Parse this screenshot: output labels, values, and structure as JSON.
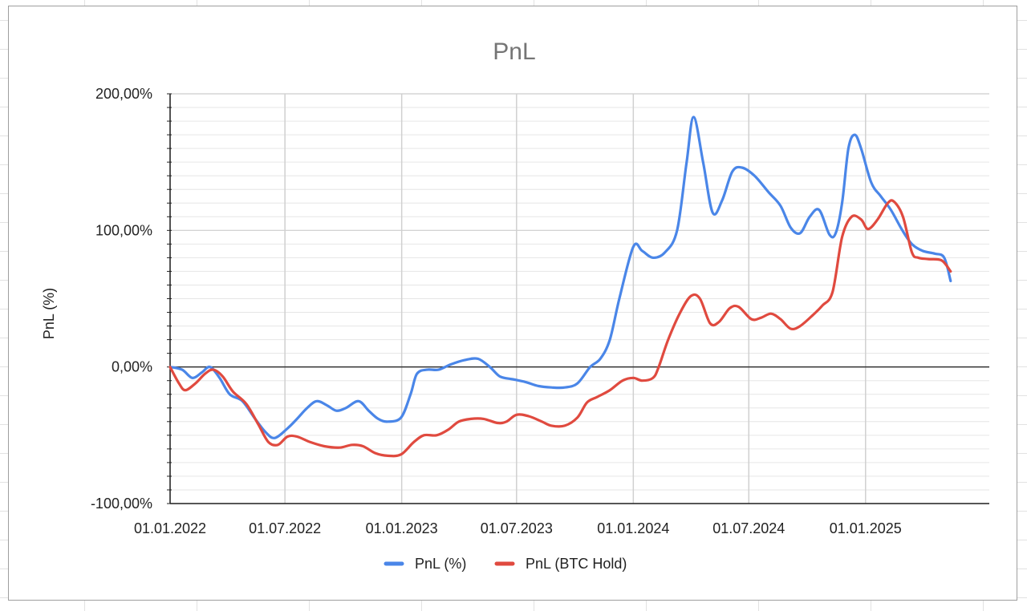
{
  "colors": {
    "series1": "#4a86e8",
    "series2": "#e04a3f",
    "title": "#757575",
    "axis_text": "#222222",
    "grid": "#d9d9d9",
    "zero_line": "#333333"
  },
  "chart_data": {
    "type": "line",
    "title": "PnL",
    "xlabel": "",
    "ylabel": "PnL (%)",
    "ylim": [
      -100,
      200
    ],
    "xlim": [
      "2022-01-01",
      "2025-07-15"
    ],
    "grid": true,
    "legend_position": "bottom",
    "x_ticks": [
      {
        "date": "2022-01-01",
        "label": "01.01.2022"
      },
      {
        "date": "2022-07-01",
        "label": "01.07.2022"
      },
      {
        "date": "2023-01-01",
        "label": "01.01.2023"
      },
      {
        "date": "2023-07-01",
        "label": "01.07.2023"
      },
      {
        "date": "2024-01-01",
        "label": "01.01.2024"
      },
      {
        "date": "2024-07-01",
        "label": "01.07.2024"
      },
      {
        "date": "2025-01-01",
        "label": "01.01.2025"
      }
    ],
    "y_ticks": [
      {
        "value": 200,
        "label": "200,00%"
      },
      {
        "value": 100,
        "label": "100,00%"
      },
      {
        "value": 0,
        "label": "0,00%"
      },
      {
        "value": -100,
        "label": "-100,00%"
      }
    ],
    "series": [
      {
        "name": "PnL (%)",
        "color": "#4a86e8",
        "points": [
          [
            "2022-01-01",
            0
          ],
          [
            "2022-01-20",
            -2
          ],
          [
            "2022-02-05",
            -8
          ],
          [
            "2022-02-20",
            -4
          ],
          [
            "2022-03-05",
            0
          ],
          [
            "2022-03-20",
            -8
          ],
          [
            "2022-04-05",
            -20
          ],
          [
            "2022-04-25",
            -25
          ],
          [
            "2022-05-15",
            -38
          ],
          [
            "2022-06-01",
            -48
          ],
          [
            "2022-06-15",
            -52
          ],
          [
            "2022-07-05",
            -45
          ],
          [
            "2022-07-20",
            -38
          ],
          [
            "2022-08-05",
            -30
          ],
          [
            "2022-08-20",
            -25
          ],
          [
            "2022-09-05",
            -28
          ],
          [
            "2022-09-20",
            -32
          ],
          [
            "2022-10-05",
            -30
          ],
          [
            "2022-10-25",
            -25
          ],
          [
            "2022-11-10",
            -32
          ],
          [
            "2022-11-25",
            -38
          ],
          [
            "2022-12-10",
            -40
          ],
          [
            "2022-12-31",
            -37
          ],
          [
            "2023-01-15",
            -20
          ],
          [
            "2023-01-25",
            -5
          ],
          [
            "2023-02-10",
            -2
          ],
          [
            "2023-02-28",
            -2
          ],
          [
            "2023-03-20",
            2
          ],
          [
            "2023-04-10",
            5
          ],
          [
            "2023-05-01",
            6
          ],
          [
            "2023-05-20",
            0
          ],
          [
            "2023-06-05",
            -7
          ],
          [
            "2023-06-25",
            -9
          ],
          [
            "2023-07-15",
            -11
          ],
          [
            "2023-08-05",
            -14
          ],
          [
            "2023-08-25",
            -15
          ],
          [
            "2023-09-15",
            -15
          ],
          [
            "2023-10-05",
            -12
          ],
          [
            "2023-10-25",
            0
          ],
          [
            "2023-11-10",
            6
          ],
          [
            "2023-11-25",
            20
          ],
          [
            "2023-12-10",
            50
          ],
          [
            "2024-01-01",
            88
          ],
          [
            "2024-01-15",
            85
          ],
          [
            "2024-02-01",
            80
          ],
          [
            "2024-02-20",
            84
          ],
          [
            "2024-03-10",
            100
          ],
          [
            "2024-03-25",
            150
          ],
          [
            "2024-04-05",
            183
          ],
          [
            "2024-04-20",
            150
          ],
          [
            "2024-05-05",
            113
          ],
          [
            "2024-05-20",
            122
          ],
          [
            "2024-06-05",
            143
          ],
          [
            "2024-06-20",
            146
          ],
          [
            "2024-07-10",
            140
          ],
          [
            "2024-08-01",
            128
          ],
          [
            "2024-08-20",
            118
          ],
          [
            "2024-09-05",
            102
          ],
          [
            "2024-09-20",
            98
          ],
          [
            "2024-10-05",
            110
          ],
          [
            "2024-10-20",
            115
          ],
          [
            "2024-11-05",
            97
          ],
          [
            "2024-11-15",
            98
          ],
          [
            "2024-11-25",
            120
          ],
          [
            "2024-12-05",
            160
          ],
          [
            "2024-12-15",
            170
          ],
          [
            "2024-12-25",
            160
          ],
          [
            "2025-01-10",
            135
          ],
          [
            "2025-01-25",
            125
          ],
          [
            "2025-02-10",
            115
          ],
          [
            "2025-02-28",
            100
          ],
          [
            "2025-03-15",
            90
          ],
          [
            "2025-04-01",
            85
          ],
          [
            "2025-04-20",
            83
          ],
          [
            "2025-05-05",
            80
          ],
          [
            "2025-05-15",
            63
          ]
        ]
      },
      {
        "name": "PnL (BTC Hold)",
        "color": "#e04a3f",
        "points": [
          [
            "2022-01-01",
            0
          ],
          [
            "2022-01-15",
            -12
          ],
          [
            "2022-01-25",
            -17
          ],
          [
            "2022-02-10",
            -12
          ],
          [
            "2022-02-25",
            -5
          ],
          [
            "2022-03-10",
            -2
          ],
          [
            "2022-03-25",
            -7
          ],
          [
            "2022-04-10",
            -18
          ],
          [
            "2022-05-01",
            -27
          ],
          [
            "2022-05-20",
            -42
          ],
          [
            "2022-06-05",
            -55
          ],
          [
            "2022-06-20",
            -57
          ],
          [
            "2022-07-05",
            -51
          ],
          [
            "2022-07-20",
            -51
          ],
          [
            "2022-08-10",
            -55
          ],
          [
            "2022-09-01",
            -58
          ],
          [
            "2022-09-25",
            -59
          ],
          [
            "2022-10-15",
            -57
          ],
          [
            "2022-11-01",
            -58
          ],
          [
            "2022-11-20",
            -63
          ],
          [
            "2022-12-10",
            -65
          ],
          [
            "2022-12-31",
            -64
          ],
          [
            "2023-01-20",
            -55
          ],
          [
            "2023-02-05",
            -50
          ],
          [
            "2023-02-25",
            -50
          ],
          [
            "2023-03-15",
            -46
          ],
          [
            "2023-04-01",
            -40
          ],
          [
            "2023-04-20",
            -38
          ],
          [
            "2023-05-10",
            -38
          ],
          [
            "2023-06-01",
            -41
          ],
          [
            "2023-06-15",
            -40
          ],
          [
            "2023-07-01",
            -35
          ],
          [
            "2023-07-20",
            -36
          ],
          [
            "2023-08-10",
            -40
          ],
          [
            "2023-08-25",
            -43
          ],
          [
            "2023-09-15",
            -43
          ],
          [
            "2023-10-05",
            -37
          ],
          [
            "2023-10-20",
            -26
          ],
          [
            "2023-11-05",
            -22
          ],
          [
            "2023-11-25",
            -17
          ],
          [
            "2023-12-15",
            -10
          ],
          [
            "2024-01-01",
            -8
          ],
          [
            "2024-01-15",
            -10
          ],
          [
            "2024-02-01",
            -8
          ],
          [
            "2024-02-10",
            0
          ],
          [
            "2024-02-25",
            20
          ],
          [
            "2024-03-15",
            40
          ],
          [
            "2024-04-01",
            52
          ],
          [
            "2024-04-15",
            50
          ],
          [
            "2024-05-01",
            32
          ],
          [
            "2024-05-15",
            33
          ],
          [
            "2024-06-01",
            43
          ],
          [
            "2024-06-15",
            44
          ],
          [
            "2024-07-05",
            35
          ],
          [
            "2024-07-20",
            36
          ],
          [
            "2024-08-05",
            39
          ],
          [
            "2024-08-20",
            35
          ],
          [
            "2024-09-05",
            28
          ],
          [
            "2024-09-20",
            30
          ],
          [
            "2024-10-10",
            38
          ],
          [
            "2024-10-25",
            45
          ],
          [
            "2024-11-10",
            55
          ],
          [
            "2024-11-25",
            95
          ],
          [
            "2024-12-10",
            110
          ],
          [
            "2024-12-25",
            108
          ],
          [
            "2025-01-05",
            101
          ],
          [
            "2025-01-20",
            108
          ],
          [
            "2025-02-05",
            120
          ],
          [
            "2025-02-15",
            121
          ],
          [
            "2025-03-01",
            110
          ],
          [
            "2025-03-15",
            84
          ],
          [
            "2025-03-25",
            80
          ],
          [
            "2025-04-10",
            79
          ],
          [
            "2025-05-01",
            78
          ],
          [
            "2025-05-15",
            70
          ]
        ]
      }
    ]
  }
}
